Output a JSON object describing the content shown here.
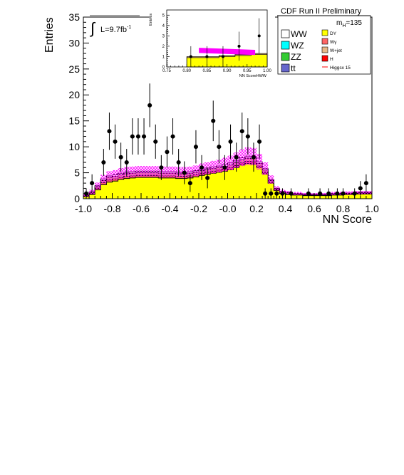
{
  "chart_data": [
    {
      "type": "histogram",
      "title": "",
      "xlabel": "NN Score",
      "ylabel": "Entries",
      "xlim": [
        -1.0,
        1.0
      ],
      "ylim": [
        0,
        35
      ],
      "x_tick_labels": [
        "-1.0",
        "-0.8",
        "-0.6",
        "-0.4",
        "-0.2",
        "-0.0",
        "0.2",
        "0.4",
        "0.6",
        "0.8",
        "1.0"
      ],
      "y_tick_labels": [
        "0",
        "5",
        "10",
        "15",
        "20",
        "25",
        "30",
        "35"
      ],
      "bin_edges": [
        -1.0,
        -0.96,
        -0.92,
        -0.88,
        -0.84,
        -0.8,
        -0.76,
        -0.72,
        -0.68,
        -0.64,
        -0.6,
        -0.56,
        -0.52,
        -0.48,
        -0.44,
        -0.4,
        -0.36,
        -0.32,
        -0.28,
        -0.24,
        -0.2,
        -0.16,
        -0.12,
        -0.08,
        -0.04,
        0.0,
        0.04,
        0.08,
        0.12,
        0.16,
        0.2,
        0.24,
        0.28,
        0.32,
        0.36,
        0.4,
        0.44,
        0.48,
        0.52,
        0.56,
        0.6,
        0.64,
        0.68,
        0.72,
        0.76,
        0.8,
        0.84,
        0.88,
        0.92,
        0.96,
        1.0
      ],
      "series": [
        {
          "name": "DY",
          "color": "#ffff00",
          "values": [
            0.4,
            0.8,
            1.7,
            2.7,
            3.2,
            3.4,
            3.7,
            3.9,
            4.0,
            4.1,
            4.1,
            4.1,
            4.1,
            4.0,
            4.0,
            4.0,
            3.9,
            3.9,
            4.0,
            4.2,
            4.5,
            4.7,
            4.9,
            5.1,
            5.3,
            5.6,
            6.0,
            6.5,
            6.8,
            6.7,
            6.0,
            4.8,
            3.0,
            1.6,
            1.0,
            0.8,
            0.7,
            0.7,
            0.6,
            0.6,
            0.6,
            0.6,
            0.6,
            0.7,
            0.7,
            0.8,
            0.8,
            0.9,
            0.9,
            0.9
          ]
        },
        {
          "name": "Wγ",
          "color": "#ff6666",
          "values": [
            0.1,
            0.2,
            0.3,
            0.4,
            0.4,
            0.4,
            0.4,
            0.4,
            0.4,
            0.4,
            0.4,
            0.4,
            0.4,
            0.4,
            0.4,
            0.4,
            0.4,
            0.4,
            0.4,
            0.4,
            0.4,
            0.4,
            0.4,
            0.4,
            0.4,
            0.4,
            0.4,
            0.4,
            0.4,
            0.4,
            0.3,
            0.3,
            0.2,
            0.1,
            0.1,
            0.1,
            0.1,
            0.1,
            0.1,
            0.1,
            0.1,
            0.1,
            0.1,
            0.1,
            0.1,
            0.1,
            0.1,
            0.1,
            0.1,
            0.1
          ]
        },
        {
          "name": "W+jet",
          "color": "#e8b888",
          "values": [
            0.1,
            0.2,
            0.3,
            0.4,
            0.5,
            0.5,
            0.5,
            0.5,
            0.5,
            0.5,
            0.5,
            0.5,
            0.5,
            0.5,
            0.5,
            0.5,
            0.5,
            0.5,
            0.5,
            0.5,
            0.5,
            0.5,
            0.5,
            0.5,
            0.5,
            0.5,
            0.6,
            0.6,
            0.6,
            0.6,
            0.5,
            0.4,
            0.3,
            0.2,
            0.2,
            0.2,
            0.1,
            0.1,
            0.1,
            0.1,
            0.1,
            0.1,
            0.1,
            0.1,
            0.1,
            0.1,
            0.1,
            0.1,
            0.1,
            0.1
          ]
        },
        {
          "name": "WW",
          "color": "#ffffff",
          "values": [
            0.1,
            0.1,
            0.2,
            0.3,
            0.3,
            0.3,
            0.3,
            0.3,
            0.3,
            0.3,
            0.3,
            0.3,
            0.3,
            0.3,
            0.3,
            0.3,
            0.3,
            0.3,
            0.3,
            0.3,
            0.3,
            0.3,
            0.3,
            0.3,
            0.4,
            0.4,
            0.4,
            0.4,
            0.4,
            0.4,
            0.3,
            0.3,
            0.2,
            0.1,
            0.1,
            0.1,
            0.1,
            0.1,
            0.1,
            0.1,
            0.1,
            0.1,
            0.1,
            0.1,
            0.1,
            0.1,
            0.1,
            0.1,
            0.1,
            0.1
          ]
        }
      ],
      "uncertainty_band": {
        "color": "#ff00ff",
        "half_width": [
          0.3,
          0.4,
          0.6,
          0.8,
          0.9,
          0.9,
          1.0,
          1.0,
          1.0,
          1.0,
          1.0,
          1.0,
          1.0,
          1.0,
          1.0,
          1.0,
          1.0,
          1.0,
          1.0,
          1.0,
          1.1,
          1.1,
          1.2,
          1.2,
          1.3,
          1.4,
          1.5,
          1.6,
          1.7,
          1.7,
          1.5,
          1.2,
          0.8,
          0.4,
          0.3,
          0.3,
          0.3,
          0.3,
          0.2,
          0.2,
          0.2,
          0.2,
          0.2,
          0.3,
          0.3,
          0.3,
          0.3,
          0.3,
          0.3,
          0.3
        ]
      },
      "data_points": [
        {
          "x": -0.98,
          "y": 1,
          "err": 1.0
        },
        {
          "x": -0.94,
          "y": 3,
          "err": 1.7
        },
        {
          "x": -0.86,
          "y": 7,
          "err": 2.6
        },
        {
          "x": -0.82,
          "y": 13,
          "err": 3.6
        },
        {
          "x": -0.78,
          "y": 11,
          "err": 3.3
        },
        {
          "x": -0.74,
          "y": 8,
          "err": 2.8
        },
        {
          "x": -0.7,
          "y": 7,
          "err": 2.6
        },
        {
          "x": -0.66,
          "y": 12,
          "err": 3.5
        },
        {
          "x": -0.62,
          "y": 12,
          "err": 3.5
        },
        {
          "x": -0.58,
          "y": 12,
          "err": 3.5
        },
        {
          "x": -0.54,
          "y": 18,
          "err": 4.2
        },
        {
          "x": -0.5,
          "y": 11,
          "err": 3.3
        },
        {
          "x": -0.46,
          "y": 6,
          "err": 2.4
        },
        {
          "x": -0.42,
          "y": 9,
          "err": 3.0
        },
        {
          "x": -0.38,
          "y": 12,
          "err": 3.5
        },
        {
          "x": -0.34,
          "y": 7,
          "err": 2.6
        },
        {
          "x": -0.3,
          "y": 5,
          "err": 2.2
        },
        {
          "x": -0.26,
          "y": 3,
          "err": 1.7
        },
        {
          "x": -0.22,
          "y": 10,
          "err": 3.2
        },
        {
          "x": -0.18,
          "y": 6,
          "err": 2.4
        },
        {
          "x": -0.14,
          "y": 4,
          "err": 2.0
        },
        {
          "x": -0.1,
          "y": 15,
          "err": 3.9
        },
        {
          "x": -0.06,
          "y": 10,
          "err": 3.2
        },
        {
          "x": -0.02,
          "y": 6,
          "err": 2.4
        },
        {
          "x": 0.02,
          "y": 11,
          "err": 3.3
        },
        {
          "x": 0.06,
          "y": 8,
          "err": 2.8
        },
        {
          "x": 0.1,
          "y": 13,
          "err": 3.6
        },
        {
          "x": 0.14,
          "y": 12,
          "err": 3.5
        },
        {
          "x": 0.18,
          "y": 8,
          "err": 2.8
        },
        {
          "x": 0.22,
          "y": 11,
          "err": 3.3
        },
        {
          "x": 0.26,
          "y": 1,
          "err": 1.0
        },
        {
          "x": 0.3,
          "y": 1,
          "err": 1.0
        },
        {
          "x": 0.34,
          "y": 1,
          "err": 1.0
        },
        {
          "x": 0.38,
          "y": 1,
          "err": 1.0
        },
        {
          "x": 0.44,
          "y": 1,
          "err": 1.0
        },
        {
          "x": 0.56,
          "y": 1,
          "err": 1.0
        },
        {
          "x": 0.64,
          "y": 1,
          "err": 1.0
        },
        {
          "x": 0.7,
          "y": 1,
          "err": 1.0
        },
        {
          "x": 0.76,
          "y": 1,
          "err": 1.0
        },
        {
          "x": 0.8,
          "y": 1,
          "err": 1.0
        },
        {
          "x": 0.88,
          "y": 1,
          "err": 1.0
        },
        {
          "x": 0.92,
          "y": 2,
          "err": 1.4
        },
        {
          "x": 0.96,
          "y": 3,
          "err": 1.7
        }
      ],
      "annotations": {
        "luminosity": "L=9.7fb",
        "luminosity_sup": "-1",
        "run_label": "CDF Run II Preliminary",
        "mass_label": "m",
        "mass_sub": "H",
        "mass_value": "=135"
      },
      "legend": {
        "placement": "top-right",
        "left_items": [
          {
            "label": "WW",
            "color": "#ffffff"
          },
          {
            "label": "WZ",
            "color": "#00ffff"
          },
          {
            "label": "ZZ",
            "color": "#33cc33"
          },
          {
            "label": "tt",
            "color": "#6666cc"
          }
        ],
        "right_items": [
          {
            "label": "DY",
            "color": "#ffff00"
          },
          {
            "label": "Wγ",
            "color": "#ff6666"
          },
          {
            "label": "W+jet",
            "color": "#e8b888"
          },
          {
            "label": "H",
            "color": "#ff0000"
          },
          {
            "label": "Higgsx 15",
            "color": "#ff0000",
            "style": "line"
          }
        ]
      }
    },
    {
      "type": "histogram",
      "title": "",
      "xlabel": "NN ScoreHWW",
      "ylabel": "Entries",
      "xlim": [
        0.75,
        1.0
      ],
      "ylim": [
        0,
        5.5
      ],
      "x_tick_labels": [
        "0.75",
        "0.80",
        "0.85",
        "0.90",
        "0.95",
        "1.00"
      ],
      "y_tick_labels": [
        "0",
        "1",
        "2",
        "3",
        "4",
        "5"
      ],
      "bin_edges": [
        0.8,
        0.84,
        0.88,
        0.92,
        0.96,
        1.0
      ],
      "series": [
        {
          "name": "DY",
          "color": "#ffff00",
          "values": [
            0.9,
            0.9,
            1.0,
            1.1,
            1.2
          ]
        },
        {
          "name": "W+jet",
          "color": "#e8b888",
          "values": [
            0.1,
            0.1,
            0.1,
            0.1,
            0.1
          ]
        }
      ],
      "signal_band": {
        "color": "#ff00ff",
        "x_range": [
          0.83,
          0.97
        ],
        "y_start": 1.6,
        "y_end": 1.4,
        "half_width": 0.25
      },
      "data_points": [
        {
          "x": 0.81,
          "y": 1,
          "err": 1.0
        },
        {
          "x": 0.85,
          "y": 1,
          "err": 1.0
        },
        {
          "x": 0.89,
          "y": 1,
          "err": 1.0
        },
        {
          "x": 0.93,
          "y": 2,
          "err": 1.4
        },
        {
          "x": 0.98,
          "y": 3,
          "err": 1.7
        }
      ]
    }
  ]
}
